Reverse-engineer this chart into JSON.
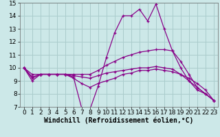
{
  "title": "",
  "xlabel": "Windchill (Refroidissement éolien,°C)",
  "background_color": "#cce8e8",
  "grid_color": "#aacccc",
  "line_color": "#880088",
  "xlim": [
    -0.5,
    23.5
  ],
  "ylim": [
    7,
    15
  ],
  "yticks": [
    7,
    8,
    9,
    10,
    11,
    12,
    13,
    14,
    15
  ],
  "xticks": [
    0,
    1,
    2,
    3,
    4,
    5,
    6,
    7,
    8,
    9,
    10,
    11,
    12,
    13,
    14,
    15,
    16,
    17,
    18,
    19,
    20,
    21,
    22,
    23
  ],
  "hours": [
    0,
    1,
    2,
    3,
    4,
    5,
    6,
    7,
    8,
    9,
    10,
    11,
    12,
    13,
    14,
    15,
    16,
    17,
    18,
    19,
    20,
    21,
    22,
    23
  ],
  "line1": [
    10,
    9,
    9.5,
    9.5,
    9.5,
    9.5,
    9.3,
    6.9,
    6.8,
    8.6,
    10.8,
    12.7,
    14.0,
    14.0,
    14.5,
    13.6,
    14.9,
    13.0,
    11.3,
    10.0,
    9.0,
    8.3,
    8.0,
    7.5
  ],
  "line2": [
    10,
    9.5,
    9.5,
    9.5,
    9.5,
    9.5,
    9.5,
    9.5,
    9.5,
    9.8,
    10.2,
    10.5,
    10.8,
    11.0,
    11.2,
    11.3,
    11.4,
    11.4,
    11.3,
    10.5,
    9.5,
    8.5,
    8.0,
    7.5
  ],
  "line3": [
    10,
    9.3,
    9.5,
    9.5,
    9.5,
    9.5,
    9.4,
    9.3,
    9.2,
    9.4,
    9.6,
    9.7,
    9.8,
    9.9,
    10.0,
    10.0,
    10.1,
    10.0,
    9.9,
    9.5,
    9.2,
    8.8,
    8.3,
    7.5
  ],
  "line4": [
    10,
    9.2,
    9.5,
    9.5,
    9.5,
    9.5,
    9.2,
    8.8,
    8.5,
    8.8,
    9.0,
    9.2,
    9.5,
    9.6,
    9.8,
    9.8,
    9.9,
    9.8,
    9.7,
    9.5,
    9.0,
    8.5,
    8.0,
    7.5
  ],
  "tick_fontsize": 6.5,
  "xlabel_fontsize": 7.0
}
